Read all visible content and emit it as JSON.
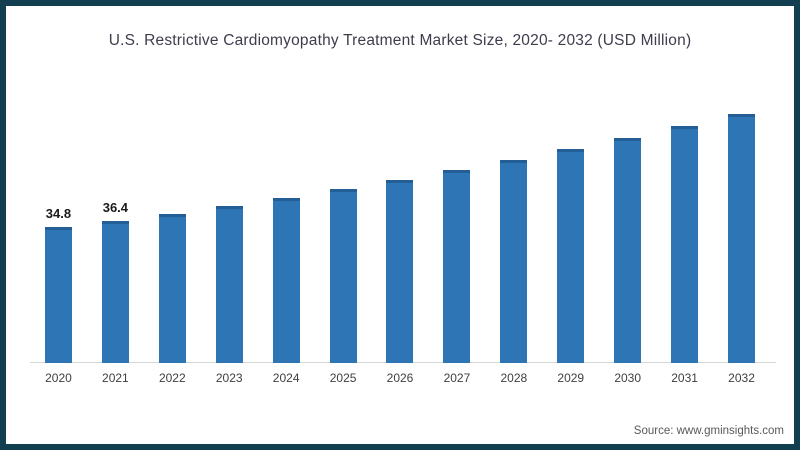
{
  "window": {
    "background": "#ffffff",
    "border_color": "#123f50"
  },
  "header": {
    "title": "U.S. Restrictive Cardiomyopathy Treatment Market Size, 2020- 2032 (USD Million)"
  },
  "footer": {
    "source": "Source: www.gminsights.com"
  },
  "chart_data": {
    "type": "bar",
    "title": "U.S. Restrictive Cardiomyopathy Treatment Market Size, 2020- 2032 (USD Million)",
    "categories": [
      "2020",
      "2021",
      "2022",
      "2023",
      "2024",
      "2025",
      "2026",
      "2027",
      "2028",
      "2029",
      "2030",
      "2031",
      "2032"
    ],
    "values": [
      34.8,
      36.4,
      38.3,
      40.3,
      42.4,
      44.7,
      47.0,
      49.5,
      52.1,
      54.8,
      57.7,
      60.7,
      63.9
    ],
    "data_labels": [
      "34.8",
      "36.4",
      "",
      "",
      "",
      "",
      "",
      "",
      "",
      "",
      "",
      "",
      ""
    ],
    "xlabel": "",
    "ylabel": "",
    "ylim": [
      0,
      66
    ],
    "gridlines": false,
    "legend": false,
    "bar_color": "#2e75b6",
    "bar_top_edge_color": "#235e97",
    "axis_line_color": "#d6d6d6",
    "data_label_color": "#1a1a1a",
    "tick_label_color": "#3f3f3f",
    "title_color": "#3d3d4c",
    "source_color": "#595959"
  }
}
